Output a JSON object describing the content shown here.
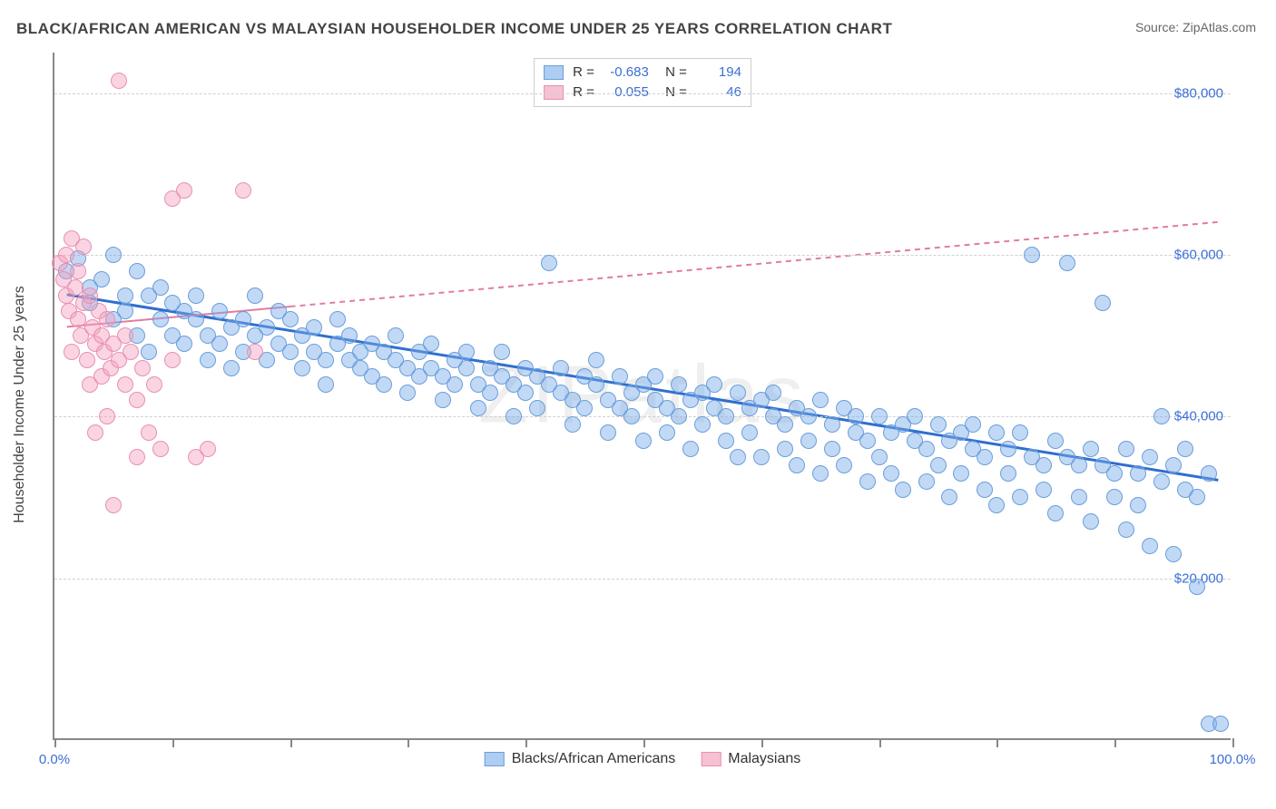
{
  "title": "BLACK/AFRICAN AMERICAN VS MALAYSIAN HOUSEHOLDER INCOME UNDER 25 YEARS CORRELATION CHART",
  "source_label": "Source: ZipAtlas.com",
  "watermark": "ZIPatlas",
  "y_axis_label": "Householder Income Under 25 years",
  "chart": {
    "type": "scatter",
    "xlim": [
      0,
      100
    ],
    "ylim": [
      0,
      85000
    ],
    "x_ticks": [
      0,
      10,
      20,
      30,
      40,
      50,
      60,
      70,
      80,
      90,
      100
    ],
    "x_tick_labels": {
      "0": "0.0%",
      "100": "100.0%"
    },
    "y_gridlines": [
      20000,
      40000,
      60000,
      80000
    ],
    "y_tick_labels": [
      "$20,000",
      "$40,000",
      "$60,000",
      "$80,000"
    ],
    "background_color": "#ffffff",
    "grid_color": "#d0d0d0",
    "axis_color": "#888888",
    "marker_radius": 9,
    "series": [
      {
        "name": "Blacks/African Americans",
        "fill_color": "rgba(120,170,235,0.45)",
        "stroke_color": "#6a9ed8",
        "swatch_fill": "#aecdf2",
        "swatch_border": "#6a9ed8",
        "R": "-0.683",
        "N": "194",
        "trend": {
          "x1": 1,
          "y1": 55000,
          "x2": 99,
          "y2": 32000,
          "width": 3,
          "color": "#2f6fd0",
          "dash": ""
        },
        "points": [
          [
            1,
            58000
          ],
          [
            2,
            59500
          ],
          [
            3,
            56000
          ],
          [
            3,
            54000
          ],
          [
            4,
            57000
          ],
          [
            5,
            60000
          ],
          [
            5,
            52000
          ],
          [
            6,
            53000
          ],
          [
            6,
            55000
          ],
          [
            7,
            50000
          ],
          [
            7,
            58000
          ],
          [
            8,
            55000
          ],
          [
            8,
            48000
          ],
          [
            9,
            56000
          ],
          [
            9,
            52000
          ],
          [
            10,
            54000
          ],
          [
            10,
            50000
          ],
          [
            11,
            53000
          ],
          [
            11,
            49000
          ],
          [
            12,
            52000
          ],
          [
            12,
            55000
          ],
          [
            13,
            50000
          ],
          [
            13,
            47000
          ],
          [
            14,
            53000
          ],
          [
            14,
            49000
          ],
          [
            15,
            51000
          ],
          [
            15,
            46000
          ],
          [
            16,
            52000
          ],
          [
            16,
            48000
          ],
          [
            17,
            50000
          ],
          [
            17,
            55000
          ],
          [
            18,
            47000
          ],
          [
            18,
            51000
          ],
          [
            19,
            49000
          ],
          [
            19,
            53000
          ],
          [
            20,
            48000
          ],
          [
            20,
            52000
          ],
          [
            21,
            50000
          ],
          [
            21,
            46000
          ],
          [
            22,
            48000
          ],
          [
            22,
            51000
          ],
          [
            23,
            47000
          ],
          [
            23,
            44000
          ],
          [
            24,
            49000
          ],
          [
            24,
            52000
          ],
          [
            25,
            47000
          ],
          [
            25,
            50000
          ],
          [
            26,
            46000
          ],
          [
            26,
            48000
          ],
          [
            27,
            49000
          ],
          [
            27,
            45000
          ],
          [
            28,
            48000
          ],
          [
            28,
            44000
          ],
          [
            29,
            47000
          ],
          [
            29,
            50000
          ],
          [
            30,
            46000
          ],
          [
            30,
            43000
          ],
          [
            31,
            48000
          ],
          [
            31,
            45000
          ],
          [
            32,
            46000
          ],
          [
            32,
            49000
          ],
          [
            33,
            45000
          ],
          [
            33,
            42000
          ],
          [
            34,
            47000
          ],
          [
            34,
            44000
          ],
          [
            35,
            46000
          ],
          [
            35,
            48000
          ],
          [
            36,
            44000
          ],
          [
            36,
            41000
          ],
          [
            37,
            46000
          ],
          [
            37,
            43000
          ],
          [
            38,
            45000
          ],
          [
            38,
            48000
          ],
          [
            39,
            44000
          ],
          [
            39,
            40000
          ],
          [
            40,
            46000
          ],
          [
            40,
            43000
          ],
          [
            41,
            45000
          ],
          [
            41,
            41000
          ],
          [
            42,
            59000
          ],
          [
            42,
            44000
          ],
          [
            43,
            43000
          ],
          [
            43,
            46000
          ],
          [
            44,
            42000
          ],
          [
            44,
            39000
          ],
          [
            45,
            45000
          ],
          [
            45,
            41000
          ],
          [
            46,
            44000
          ],
          [
            46,
            47000
          ],
          [
            47,
            42000
          ],
          [
            47,
            38000
          ],
          [
            48,
            45000
          ],
          [
            48,
            41000
          ],
          [
            49,
            43000
          ],
          [
            49,
            40000
          ],
          [
            50,
            44000
          ],
          [
            50,
            37000
          ],
          [
            51,
            42000
          ],
          [
            51,
            45000
          ],
          [
            52,
            41000
          ],
          [
            52,
            38000
          ],
          [
            53,
            44000
          ],
          [
            53,
            40000
          ],
          [
            54,
            42000
          ],
          [
            54,
            36000
          ],
          [
            55,
            43000
          ],
          [
            55,
            39000
          ],
          [
            56,
            41000
          ],
          [
            56,
            44000
          ],
          [
            57,
            40000
          ],
          [
            57,
            37000
          ],
          [
            58,
            43000
          ],
          [
            58,
            35000
          ],
          [
            59,
            41000
          ],
          [
            59,
            38000
          ],
          [
            60,
            42000
          ],
          [
            60,
            35000
          ],
          [
            61,
            40000
          ],
          [
            61,
            43000
          ],
          [
            62,
            39000
          ],
          [
            62,
            36000
          ],
          [
            63,
            41000
          ],
          [
            63,
            34000
          ],
          [
            64,
            40000
          ],
          [
            64,
            37000
          ],
          [
            65,
            42000
          ],
          [
            65,
            33000
          ],
          [
            66,
            39000
          ],
          [
            66,
            36000
          ],
          [
            67,
            41000
          ],
          [
            67,
            34000
          ],
          [
            68,
            38000
          ],
          [
            68,
            40000
          ],
          [
            69,
            37000
          ],
          [
            69,
            32000
          ],
          [
            70,
            40000
          ],
          [
            70,
            35000
          ],
          [
            71,
            38000
          ],
          [
            71,
            33000
          ],
          [
            72,
            39000
          ],
          [
            72,
            31000
          ],
          [
            73,
            37000
          ],
          [
            73,
            40000
          ],
          [
            74,
            36000
          ],
          [
            74,
            32000
          ],
          [
            75,
            39000
          ],
          [
            75,
            34000
          ],
          [
            76,
            37000
          ],
          [
            76,
            30000
          ],
          [
            77,
            38000
          ],
          [
            77,
            33000
          ],
          [
            78,
            36000
          ],
          [
            78,
            39000
          ],
          [
            79,
            35000
          ],
          [
            79,
            31000
          ],
          [
            80,
            38000
          ],
          [
            80,
            29000
          ],
          [
            81,
            36000
          ],
          [
            81,
            33000
          ],
          [
            82,
            38000
          ],
          [
            82,
            30000
          ],
          [
            83,
            35000
          ],
          [
            83,
            60000
          ],
          [
            84,
            34000
          ],
          [
            84,
            31000
          ],
          [
            85,
            37000
          ],
          [
            85,
            28000
          ],
          [
            86,
            35000
          ],
          [
            86,
            59000
          ],
          [
            87,
            34000
          ],
          [
            87,
            30000
          ],
          [
            88,
            36000
          ],
          [
            88,
            27000
          ],
          [
            89,
            34000
          ],
          [
            89,
            54000
          ],
          [
            90,
            33000
          ],
          [
            90,
            30000
          ],
          [
            91,
            36000
          ],
          [
            91,
            26000
          ],
          [
            92,
            33000
          ],
          [
            92,
            29000
          ],
          [
            93,
            35000
          ],
          [
            93,
            24000
          ],
          [
            94,
            32000
          ],
          [
            94,
            40000
          ],
          [
            95,
            34000
          ],
          [
            95,
            23000
          ],
          [
            96,
            31000
          ],
          [
            96,
            36000
          ],
          [
            97,
            30000
          ],
          [
            97,
            19000
          ],
          [
            98,
            33000
          ],
          [
            98,
            2000
          ],
          [
            99,
            2000
          ]
        ]
      },
      {
        "name": "Malaysians",
        "fill_color": "rgba(245,160,190,0.45)",
        "stroke_color": "#e890b0",
        "swatch_fill": "#f5c1d3",
        "swatch_border": "#e890b0",
        "R": "0.055",
        "N": "46",
        "trend": {
          "x1": 1,
          "y1": 51000,
          "x2": 99,
          "y2": 64000,
          "width": 2,
          "color": "#e37ca0",
          "dash": "6,5",
          "solid_until": 20
        },
        "points": [
          [
            0.5,
            59000
          ],
          [
            0.8,
            57000
          ],
          [
            1,
            55000
          ],
          [
            1,
            60000
          ],
          [
            1.2,
            53000
          ],
          [
            1.5,
            62000
          ],
          [
            1.5,
            48000
          ],
          [
            1.8,
            56000
          ],
          [
            2,
            52000
          ],
          [
            2,
            58000
          ],
          [
            2.2,
            50000
          ],
          [
            2.5,
            54000
          ],
          [
            2.5,
            61000
          ],
          [
            2.8,
            47000
          ],
          [
            3,
            55000
          ],
          [
            3,
            44000
          ],
          [
            3.2,
            51000
          ],
          [
            3.5,
            49000
          ],
          [
            3.5,
            38000
          ],
          [
            3.8,
            53000
          ],
          [
            4,
            45000
          ],
          [
            4,
            50000
          ],
          [
            4.2,
            48000
          ],
          [
            4.5,
            52000
          ],
          [
            4.5,
            40000
          ],
          [
            4.8,
            46000
          ],
          [
            5,
            49000
          ],
          [
            5,
            29000
          ],
          [
            5.5,
            47000
          ],
          [
            5.5,
            81500
          ],
          [
            6,
            44000
          ],
          [
            6,
            50000
          ],
          [
            6.5,
            48000
          ],
          [
            7,
            42000
          ],
          [
            7,
            35000
          ],
          [
            7.5,
            46000
          ],
          [
            8,
            38000
          ],
          [
            8.5,
            44000
          ],
          [
            9,
            36000
          ],
          [
            10,
            47000
          ],
          [
            10,
            67000
          ],
          [
            11,
            68000
          ],
          [
            12,
            35000
          ],
          [
            13,
            36000
          ],
          [
            16,
            68000
          ],
          [
            17,
            48000
          ]
        ]
      }
    ]
  }
}
